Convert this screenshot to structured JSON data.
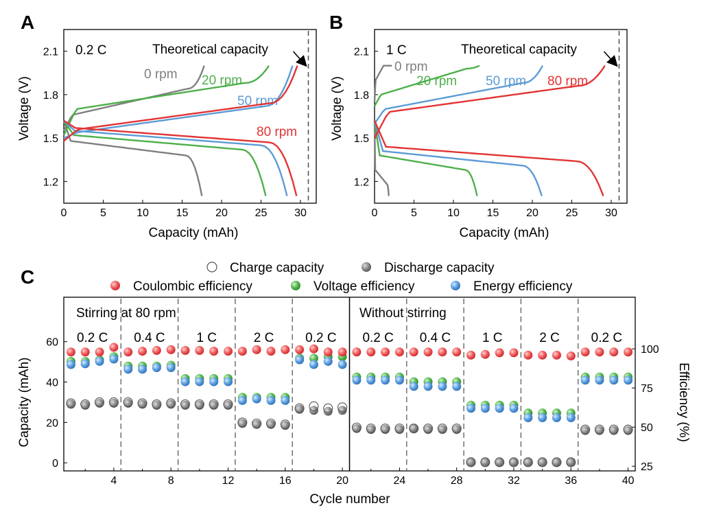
{
  "panels": {
    "a": "A",
    "b": "B",
    "c": "C"
  },
  "colors": {
    "gray": "#7f7f7f",
    "green": "#4daf4a",
    "blue": "#5b9bd5",
    "red": "#e23434",
    "teal": "#48a88a",
    "dark": "#333333"
  },
  "chart_data": [
    {
      "id": "A",
      "type": "line",
      "ylabel": "Voltage (V)",
      "xlabel": "Capacity (mAh)",
      "xlim": [
        0,
        32
      ],
      "ylim": [
        1.05,
        2.25
      ],
      "xticks": [
        "0",
        "5",
        "10",
        "15",
        "20",
        "25",
        "30"
      ],
      "yticks": [
        "1.2",
        "1.5",
        "1.8",
        "2.1"
      ],
      "rate_label": "0.2 C",
      "theoretical_label": "Theoretical capacity",
      "theoretical_capacity": 31,
      "series": [
        {
          "name": "0 rpm",
          "label": "0 rpm",
          "color": "#7f7f7f",
          "charge_end": 17.8,
          "discharge_end": 17.5,
          "charge_start_v": 1.55,
          "charge_plateau": 1.66,
          "discharge_plateau": 1.4
        },
        {
          "name": "20 rpm",
          "label": "20 rpm",
          "color": "#4daf4a",
          "charge_end": 26,
          "discharge_end": 25.6,
          "charge_start_v": 1.52,
          "charge_plateau": 1.7,
          "discharge_plateau": 1.44
        },
        {
          "name": "50 rpm",
          "label": "50 rpm",
          "color": "#5b9bd5",
          "charge_end": 29,
          "discharge_end": 28.3,
          "charge_start_v": 1.5,
          "charge_plateau": 1.54,
          "discharge_plateau": 1.47
        },
        {
          "name": "80 rpm",
          "label": "80 rpm",
          "color": "#e23434",
          "charge_end": 29.6,
          "discharge_end": 29.5,
          "charge_start_v": 1.48,
          "charge_plateau": 1.56,
          "discharge_plateau": 1.49
        }
      ]
    },
    {
      "id": "B",
      "type": "line",
      "ylabel": "Voltage (V)",
      "xlabel": "Capacity (mAh)",
      "xlim": [
        0,
        32
      ],
      "ylim": [
        1.05,
        2.25
      ],
      "xticks": [
        "0",
        "5",
        "10",
        "15",
        "20",
        "25",
        "30"
      ],
      "yticks": [
        "1.2",
        "1.5",
        "1.8",
        "2.1"
      ],
      "rate_label": "1 C",
      "theoretical_label": "Theoretical capacity",
      "theoretical_capacity": 31,
      "series": [
        {
          "name": "0 rpm",
          "label": "0 rpm",
          "color": "#7f7f7f",
          "charge_end": 2.2,
          "discharge_end": 1.8,
          "charge_start_v": 1.75,
          "charge_plateau": 1.9,
          "discharge_plateau": 1.2
        },
        {
          "name": "20 rpm",
          "label": "20 rpm",
          "color": "#4daf4a",
          "charge_end": 13.3,
          "discharge_end": 13,
          "charge_start_v": 1.72,
          "charge_plateau": 1.8,
          "discharge_plateau": 1.3
        },
        {
          "name": "50 rpm",
          "label": "50 rpm",
          "color": "#5b9bd5",
          "charge_end": 21.3,
          "discharge_end": 21.2,
          "charge_start_v": 1.6,
          "charge_plateau": 1.7,
          "discharge_plateau": 1.33
        },
        {
          "name": "80 rpm",
          "label": "80 rpm",
          "color": "#e23434",
          "charge_end": 29.2,
          "discharge_end": 29,
          "charge_start_v": 1.5,
          "charge_plateau": 1.68,
          "discharge_plateau": 1.36
        }
      ]
    },
    {
      "id": "C",
      "type": "scatter",
      "xlabel": "Cycle number",
      "ylabel": "Capacity (mAh)",
      "y2label": "Efficiency (%)",
      "xlim": [
        0.5,
        40.5
      ],
      "ylim": [
        -4,
        82
      ],
      "y2lim": [
        22,
        133
      ],
      "xticks": [
        4,
        8,
        12,
        16,
        20,
        24,
        28,
        32,
        36,
        40
      ],
      "yticks": [
        0,
        20,
        40,
        60
      ],
      "y2ticks": [
        25,
        50,
        75,
        100
      ],
      "section_labels": [
        "Stirring at 80 rpm",
        "Without stirring"
      ],
      "rate_labels": [
        "0.2 C",
        "0.4 C",
        "1 C",
        "2 C",
        "0.2 C",
        "0.2 C",
        "0.4 C",
        "1 C",
        "2 C",
        "0.2 C"
      ],
      "legend": [
        "Charge capacity",
        "Discharge capacity",
        "Coulombic efficiency",
        "Voltage efficiency",
        "Energy efficiency"
      ],
      "cycles": [
        1,
        2,
        3,
        4,
        5,
        6,
        7,
        8,
        9,
        10,
        11,
        12,
        13,
        14,
        15,
        16,
        17,
        18,
        19,
        20,
        21,
        22,
        23,
        24,
        25,
        26,
        27,
        28,
        29,
        30,
        31,
        32,
        33,
        34,
        35,
        36,
        37,
        38,
        39,
        40
      ],
      "charge_capacity": [
        29.5,
        29,
        30,
        30,
        30,
        29.5,
        29,
        29.5,
        29,
        29,
        29,
        29,
        20,
        19.5,
        19.5,
        19,
        27,
        28,
        27,
        27.5,
        17.5,
        17,
        17,
        17,
        17,
        17,
        17,
        17,
        0.3,
        0.3,
        0.3,
        0.3,
        0.3,
        0.3,
        0.3,
        0.3,
        16.5,
        16.5,
        16.5,
        16.5
      ],
      "discharge_capacity": [
        29,
        28.5,
        29.5,
        29.5,
        29.5,
        29,
        28.5,
        29,
        28.5,
        28.5,
        28.5,
        28.5,
        19.5,
        19,
        19,
        18.5,
        26.5,
        26,
        25.5,
        26,
        17,
        16.5,
        16.5,
        16.5,
        17,
        16.5,
        16.5,
        16.5,
        0.2,
        0.2,
        0.2,
        0.2,
        0.2,
        0.2,
        0.2,
        0.2,
        16,
        16,
        16,
        16
      ],
      "coulombic_efficiency": [
        98,
        98,
        98,
        101,
        98,
        98.5,
        99,
        99.5,
        99,
        99,
        98.5,
        98.5,
        98.5,
        99.5,
        98.5,
        99.5,
        99.5,
        100,
        98,
        98,
        98,
        98,
        98,
        98,
        98,
        98,
        98,
        98,
        96,
        96.5,
        97.5,
        97.5,
        96,
        96,
        96,
        95.5,
        98,
        98,
        98,
        98
      ],
      "voltage_efficiency": [
        92,
        92,
        93,
        95,
        89,
        89,
        89,
        89.5,
        81,
        81,
        81,
        81,
        69,
        69,
        69,
        69,
        94,
        94,
        95,
        95,
        82,
        82,
        82,
        82,
        79,
        79,
        79,
        79,
        64,
        64,
        64,
        64,
        59,
        59,
        59,
        59,
        82,
        82,
        82,
        82
      ],
      "energy_efficiency": [
        90,
        90.5,
        92,
        93.5,
        87,
        87,
        88,
        88,
        79,
        79,
        79,
        79,
        67,
        68,
        67,
        67,
        93,
        90,
        92,
        90,
        80,
        80,
        80,
        80,
        76,
        76,
        76,
        76,
        62,
        62,
        62,
        62,
        56,
        56,
        56,
        56,
        80,
        80,
        80,
        80
      ]
    }
  ]
}
